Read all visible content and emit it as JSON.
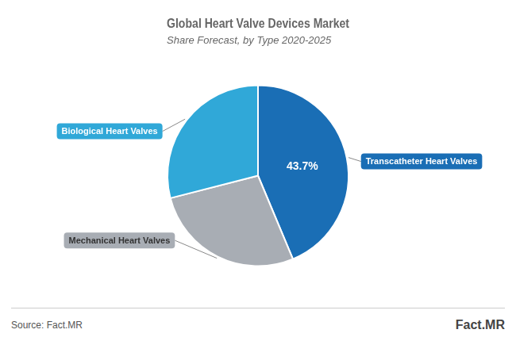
{
  "chart_data": {
    "type": "pie",
    "title": "Global Heart Valve Devices Market",
    "subtitle": "Share Forecast, by Type 2020-2025",
    "categories": [
      "Transcatheter Heart Valves",
      "Mechanical Heart Valves",
      "Biological Heart Valves"
    ],
    "values": [
      43.7,
      27.3,
      29.0
    ],
    "colors": [
      "#1a6eb5",
      "#a8adb4",
      "#30a8d8"
    ],
    "value_labels": [
      "43.7%",
      null,
      null
    ],
    "annotations": [
      "Source: Fact.MR",
      "Fact.MR"
    ]
  }
}
